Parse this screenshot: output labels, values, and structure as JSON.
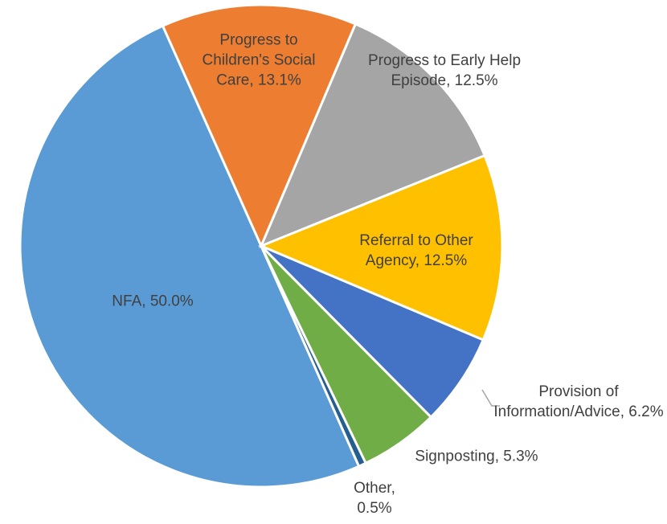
{
  "chart_data": {
    "type": "pie",
    "categories": [
      "Progress to Children's Social Care",
      "Progress to Early Help Episode",
      "Referral to Other Agency",
      "Provision of Information/Advice",
      "Signposting",
      "Other",
      "NFA"
    ],
    "values": [
      13.1,
      12.5,
      12.5,
      6.2,
      5.3,
      0.5,
      50.0
    ],
    "value_labels": [
      "13.1%",
      "12.5%",
      "12.5%",
      "6.2%",
      "5.3%",
      "0.5%",
      "50.0%"
    ],
    "colors": [
      "#ed7d31",
      "#a5a5a5",
      "#ffc000",
      "#4472c4",
      "#70ad47",
      "#255e91",
      "#5b9bd5"
    ]
  }
}
